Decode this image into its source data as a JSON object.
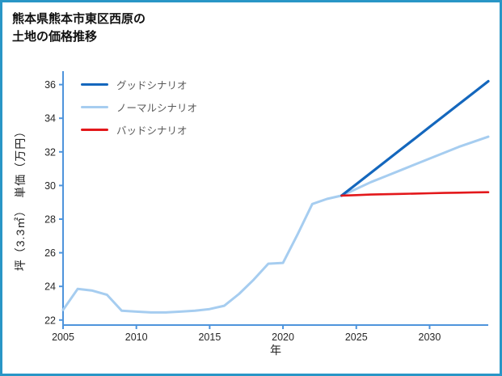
{
  "title": "熊本県熊本市東区西原の\n土地の価格推移",
  "frame": {
    "border_color": "#2996c6"
  },
  "chart_data": {
    "type": "line",
    "title": "熊本県熊本市東区西原の 土地の価格推移",
    "xlabel": "年",
    "ylabel": "坪（3.3㎡）　単価（万円）",
    "xlim": [
      2005,
      2034
    ],
    "ylim": [
      21.7,
      36.8
    ],
    "xticks": [
      2005,
      2010,
      2015,
      2020,
      2025,
      2030
    ],
    "yticks": [
      22,
      24,
      26,
      28,
      30,
      32,
      34,
      36
    ],
    "grid": false,
    "legend_position": "upper-left",
    "axis_color": "#4e94dc",
    "tick_label_color": "#262626",
    "legend": [
      {
        "label": "グッドシナリオ",
        "color": "#1467bd",
        "width": 3.2
      },
      {
        "label": "ノーマルシナリオ",
        "color": "#a6cdf0",
        "width": 3.2
      },
      {
        "label": "バッドシナリオ",
        "color": "#e3181b",
        "width": 2.6
      }
    ],
    "series": [
      {
        "name": "ノーマルシナリオ",
        "color": "#a6cdf0",
        "width": 3,
        "x": [
          2005,
          2006,
          2007,
          2008,
          2009,
          2010,
          2011,
          2012,
          2013,
          2014,
          2015,
          2016,
          2017,
          2018,
          2019,
          2020,
          2021,
          2022,
          2023,
          2024,
          2025,
          2026,
          2027,
          2028,
          2029,
          2030,
          2031,
          2032,
          2033,
          2034
        ],
        "y": [
          22.6,
          23.85,
          23.75,
          23.5,
          22.55,
          22.5,
          22.45,
          22.45,
          22.5,
          22.55,
          22.65,
          22.85,
          23.55,
          24.4,
          25.35,
          25.4,
          27.1,
          28.9,
          29.2,
          29.4,
          29.8,
          30.2,
          30.55,
          30.9,
          31.25,
          31.6,
          31.95,
          32.3,
          32.6,
          32.9
        ]
      },
      {
        "name": "グッドシナリオ",
        "color": "#1467bd",
        "width": 3.2,
        "x": [
          2024,
          2025,
          2026,
          2027,
          2028,
          2029,
          2030,
          2031,
          2032,
          2033,
          2034
        ],
        "y": [
          29.4,
          30.08,
          30.76,
          31.44,
          32.12,
          32.8,
          33.48,
          34.16,
          34.84,
          35.52,
          36.2
        ]
      },
      {
        "name": "バッドシナリオ",
        "color": "#e3181b",
        "width": 2.6,
        "x": [
          2024,
          2025,
          2026,
          2027,
          2028,
          2029,
          2030,
          2031,
          2032,
          2033,
          2034
        ],
        "y": [
          29.4,
          29.43,
          29.46,
          29.48,
          29.5,
          29.52,
          29.54,
          29.56,
          29.57,
          29.59,
          29.6
        ]
      }
    ]
  }
}
